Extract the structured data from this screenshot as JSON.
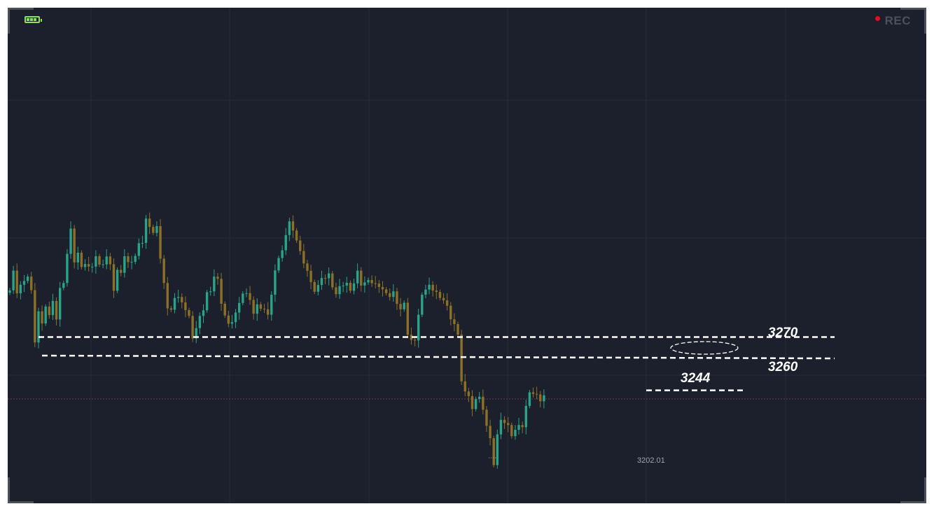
{
  "hud": {
    "rec_label": "REC",
    "battery_icon": "battery-full-icon"
  },
  "colors": {
    "background": "#1b202c",
    "up": "#2aa388",
    "down": "#8c7027",
    "annotation": "#ffffff",
    "price_line": "#6b3a45"
  },
  "chart_data": {
    "type": "candlestick",
    "ylim": [
      3193,
      3335
    ],
    "annotations": {
      "levels": [
        {
          "label": "3270",
          "value": 3270
        },
        {
          "label": "3260",
          "value": 3260
        },
        {
          "label": "3244",
          "value": 3244
        }
      ],
      "low_label": "3202.01",
      "low_value": 3202.01,
      "highlight": "ellipse between 3270 and 3260",
      "current_price_line": 3239
    },
    "close": [
      3293.4,
      3303.3,
      3291.9,
      3296.2,
      3298.1,
      3300.3,
      3293.5,
      3267.3,
      3282.9,
      3276.8,
      3285.3,
      3281,
      3288.1,
      3278.8,
      3294.6,
      3297.1,
      3311.7,
      3324.4,
      3307.4,
      3312.3,
      3305.1,
      3306.6,
      3305.3,
      3305.3,
      3310.5,
      3306.3,
      3306.4,
      3310.4,
      3306.5,
      3293.2,
      3303.7,
      3302.2,
      3310.5,
      3307.6,
      3307.7,
      3310.7,
      3317,
      3317.2,
      3329.4,
      3325.2,
      3322.2,
      3325.6,
      3309.3,
      3297.1,
      3284.4,
      3283.7,
      3289.6,
      3290.1,
      3287.4,
      3283.5,
      3280.6,
      3269.3,
      3274.5,
      3280.6,
      3283.4,
      3292.5,
      3292.9,
      3300.3,
      3299.2,
      3286.7,
      3280.8,
      3276.7,
      3277.5,
      3282.3,
      3287.1,
      3291.8,
      3292,
      3288.6,
      3281.7,
      3286.4,
      3284.2,
      3283.9,
      3281.2,
      3291.2,
      3303.4,
      3309.6,
      3313.5,
      3321.1,
      3328,
      3323.4,
      3318.4,
      3313.1,
      3306.9,
      3303.2,
      3297.6,
      3292.7,
      3296.1,
      3299.6,
      3299.5,
      3301.9,
      3294.9,
      3291.5,
      3295.5,
      3295.8,
      3297.2,
      3293.2,
      3296.9,
      3303.3,
      3295.8,
      3297.4,
      3298.6,
      3297,
      3296.8,
      3295.1,
      3293.9,
      3292,
      3290.1,
      3292.9,
      3286.6,
      3283.9,
      3287.2,
      3271.2,
      3268.6,
      3268.3,
      3281.2,
      3291.2,
      3293.8,
      3296.2,
      3293.3,
      3292.6,
      3289.6,
      3288.4,
      3285.7,
      3278.9,
      3276.5,
      3271.2,
      3247.8,
      3242.7,
      3240.4,
      3233.9,
      3238.9,
      3240.1,
      3233.6,
      3225.5,
      3219.3,
      3205.8,
      3221.2,
      3228.5,
      3226.9,
      3225.9,
      3220.3,
      3223.5,
      3225.9,
      3224.8,
      3235.5,
      3242.3,
      3241.5,
      3241.2,
      3237.8,
      3240.8
    ]
  }
}
